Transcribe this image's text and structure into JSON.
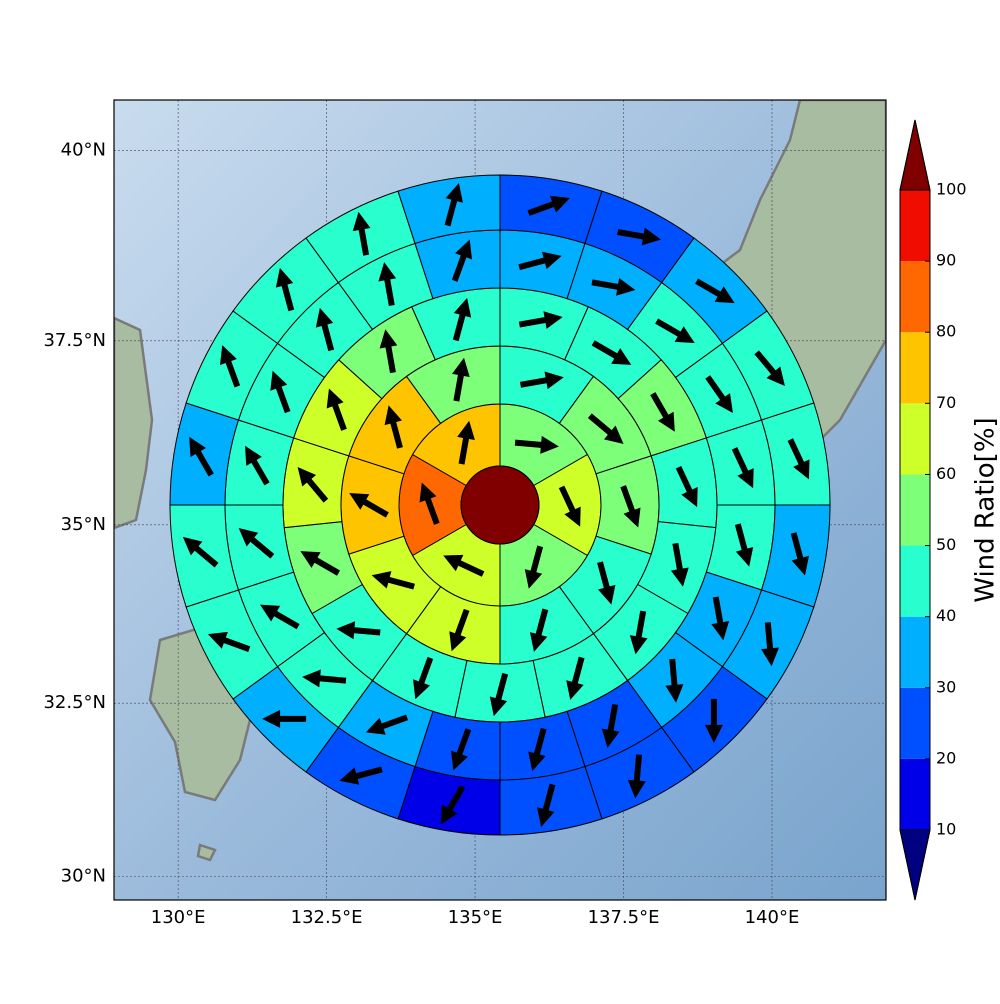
{
  "chart_data": {
    "type": "polar-sector-map",
    "projection": "mercator",
    "xlim": [
      128.92,
      141.92
    ],
    "ylim": [
      29.66,
      40.65
    ],
    "xticks": [
      {
        "value": 130,
        "label": "130°E"
      },
      {
        "value": 132.5,
        "label": "132.5°E"
      },
      {
        "value": 135,
        "label": "135°E"
      },
      {
        "value": 137.5,
        "label": "137.5°E"
      },
      {
        "value": 140,
        "label": "140°E"
      }
    ],
    "yticks": [
      {
        "value": 30,
        "label": "30°N"
      },
      {
        "value": 32.5,
        "label": "32.5°N"
      },
      {
        "value": 35,
        "label": "35°N"
      },
      {
        "value": 37.5,
        "label": "37.5°N"
      },
      {
        "value": 40,
        "label": "40°N"
      }
    ],
    "grid": true,
    "center_value": 105,
    "rings": [
      {
        "values": [
          55,
          65,
          55,
          65,
          85,
          75
        ],
        "directions": [
          95,
          155,
          195,
          295,
          340,
          10
        ]
      },
      {
        "values": [
          45,
          55,
          55,
          45,
          45,
          65,
          65,
          75,
          75,
          55
        ],
        "directions": [
          80,
          130,
          160,
          165,
          195,
          200,
          285,
          300,
          345,
          10
        ]
      },
      {
        "values": [
          45,
          45,
          55,
          45,
          45,
          45,
          45,
          45,
          45,
          45,
          55,
          65,
          65,
          55,
          45
        ],
        "directions": [
          80,
          120,
          150,
          155,
          170,
          190,
          195,
          195,
          200,
          275,
          300,
          320,
          340,
          350,
          15
        ]
      },
      {
        "values": [
          35,
          35,
          45,
          45,
          45,
          45,
          35,
          35,
          25,
          25,
          25,
          35,
          45,
          45,
          45,
          45,
          45,
          45,
          45,
          35
        ],
        "directions": [
          75,
          100,
          120,
          145,
          155,
          165,
          170,
          175,
          190,
          195,
          200,
          250,
          275,
          300,
          310,
          330,
          340,
          345,
          350,
          20
        ]
      },
      {
        "values": [
          25,
          25,
          35,
          45,
          45,
          35,
          35,
          25,
          25,
          25,
          15,
          25,
          35,
          45,
          45,
          35,
          45,
          45,
          45,
          35
        ],
        "directions": [
          70,
          100,
          120,
          140,
          155,
          165,
          175,
          180,
          185,
          195,
          210,
          255,
          270,
          290,
          310,
          330,
          340,
          345,
          350,
          15
        ]
      }
    ],
    "colorbar": {
      "label": "Wind Ratio[%]",
      "ticks": [
        10,
        20,
        30,
        40,
        50,
        60,
        70,
        80,
        90,
        100
      ],
      "colors": [
        "#0000e8",
        "#0050ff",
        "#00b0ff",
        "#29ffce",
        "#7dff7a",
        "#ceff29",
        "#ffc400",
        "#ff6800",
        "#f00d00"
      ],
      "under_color": "#000080",
      "over_color": "#800000"
    }
  }
}
